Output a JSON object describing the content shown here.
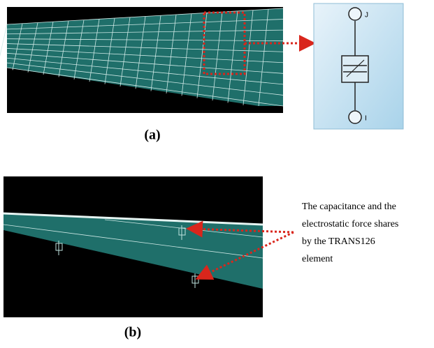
{
  "figure_a": {
    "label": "(a)",
    "node_top": "J",
    "node_bottom": "I"
  },
  "figure_b": {
    "label": "(b)",
    "annotation": [
      "The capacitance and the",
      "electrostatic force shares",
      "by the TRANS126",
      "element"
    ]
  }
}
